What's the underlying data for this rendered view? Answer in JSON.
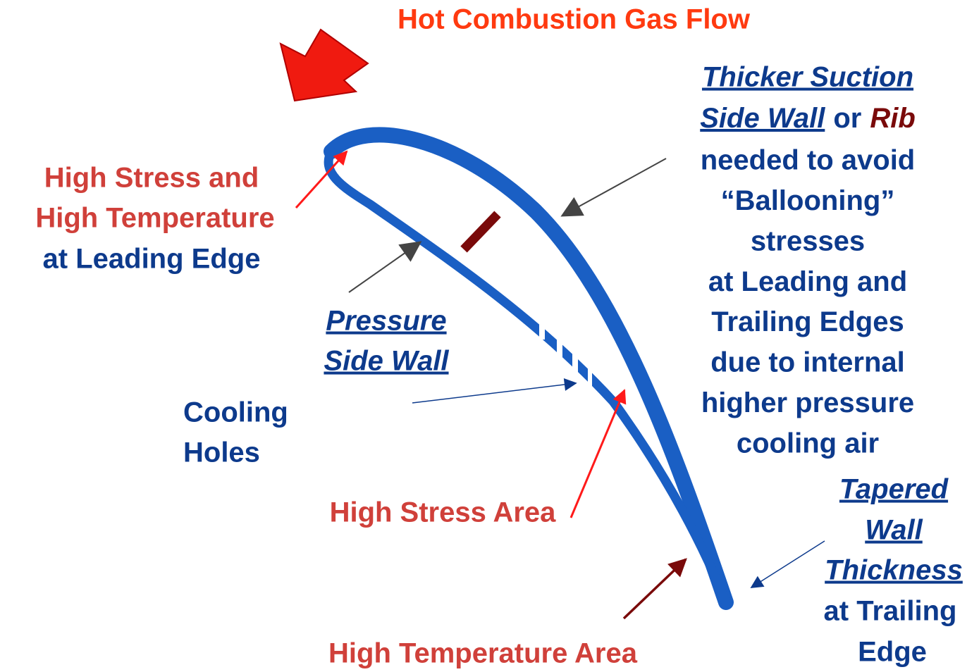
{
  "title": "Hot Combustion Gas Flow",
  "leading_edge": {
    "lines": [
      "High Stress and",
      "High Temperature",
      "at Leading Edge"
    ]
  },
  "pressure_side": {
    "lines": [
      "Pressure",
      "Side Wall"
    ]
  },
  "cooling_holes": {
    "lines": [
      "Cooling",
      "Holes"
    ]
  },
  "high_stress_area": "High Stress Area",
  "high_temperature_area": "High Temperature Area",
  "suction_side": {
    "emphasis": [
      "Thicker Suction",
      "Side Wall"
    ],
    "connector": "or",
    "rib": "Rib",
    "lines": [
      "needed to avoid",
      "“Ballooning”",
      "stresses",
      "at Leading and",
      "Trailing Edges",
      "due to internal",
      "higher pressure",
      "cooling air"
    ]
  },
  "trailing_edge": {
    "emphasis": [
      "Tapered",
      "Wall",
      "Thickness"
    ],
    "lines": [
      "at Trailing",
      "Edge"
    ]
  }
}
